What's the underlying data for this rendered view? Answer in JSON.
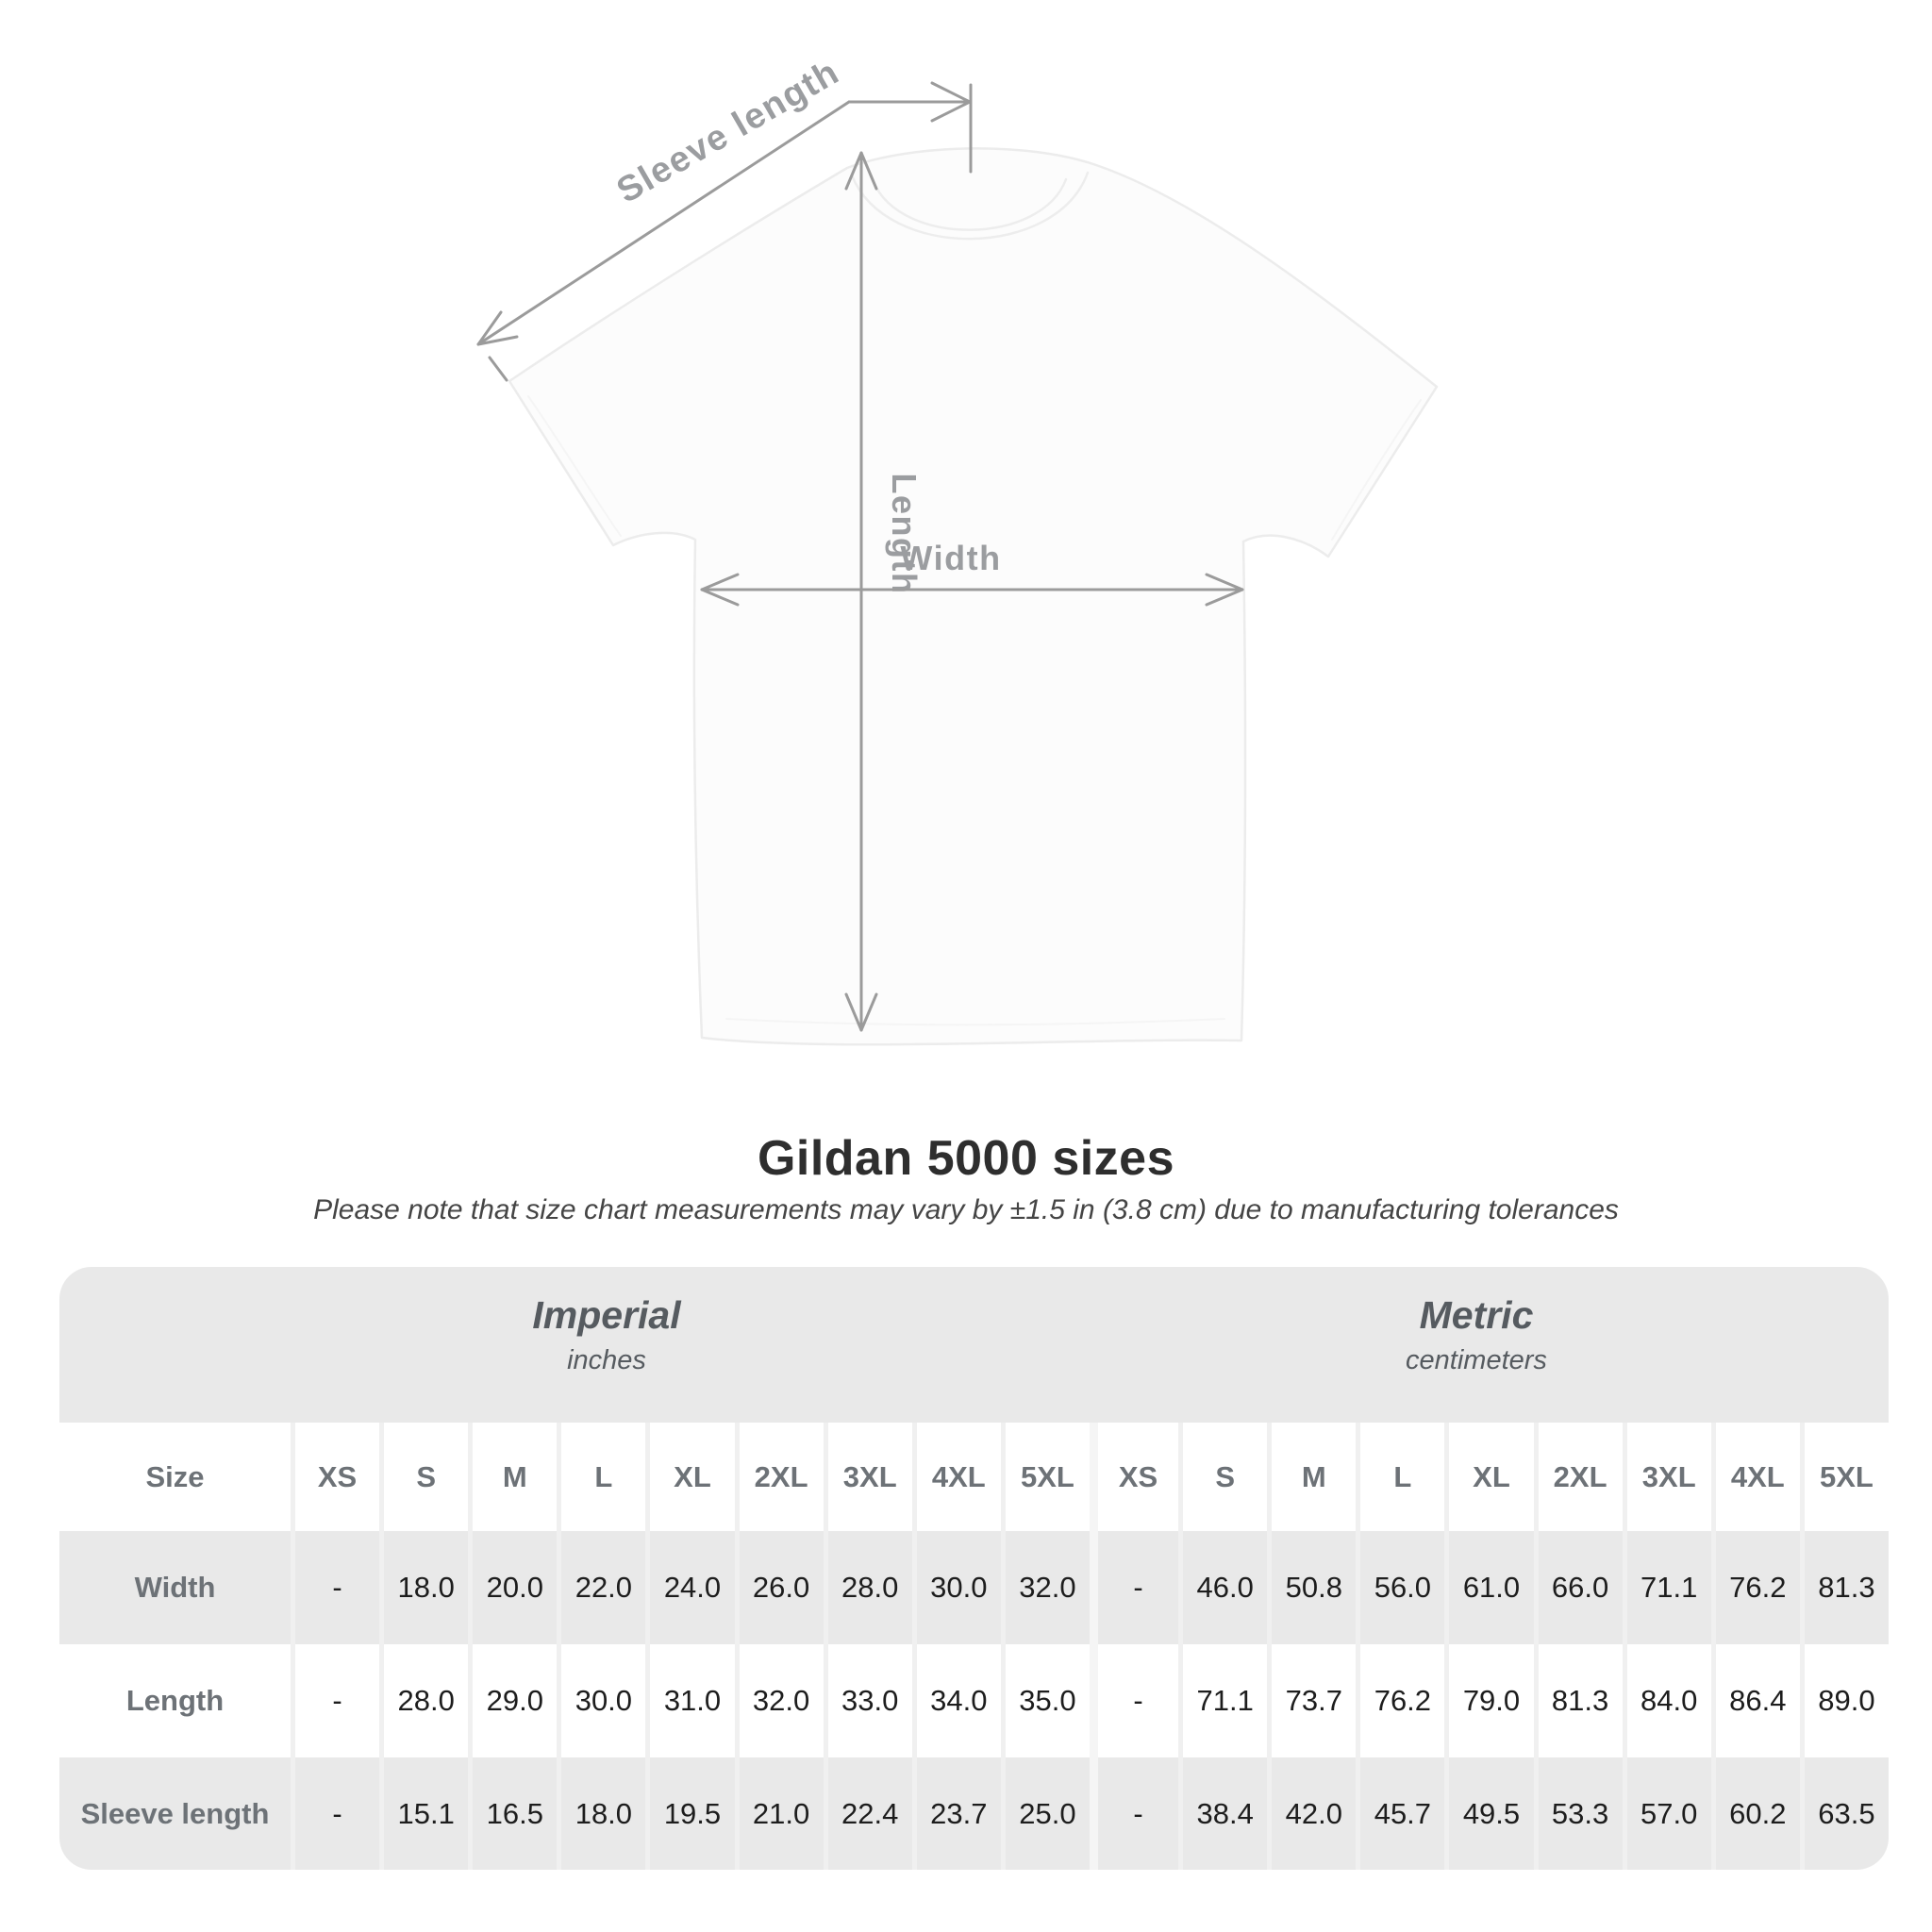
{
  "diagram": {
    "sleeve_length_label": "Sleeve length",
    "length_label": "Length",
    "width_label": "Width",
    "arrow_color": "#9b9b9b",
    "label_color": "#9b9da0"
  },
  "header": {
    "title": "Gildan 5000 sizes",
    "subtitle": "Please note that size chart measurements may vary by ±1.5 in (3.8 cm) due to manufacturing tolerances"
  },
  "chart_data": {
    "type": "table",
    "title": "Gildan 5000 sizes",
    "corner_header": "Size",
    "unit_groups": [
      {
        "label": "Imperial",
        "sublabel": "inches"
      },
      {
        "label": "Metric",
        "sublabel": "centimeters"
      }
    ],
    "size_columns": [
      "XS",
      "S",
      "M",
      "L",
      "XL",
      "2XL",
      "3XL",
      "4XL",
      "5XL"
    ],
    "rows": [
      {
        "label": "Width",
        "imperial": [
          "-",
          "18.0",
          "20.0",
          "22.0",
          "24.0",
          "26.0",
          "28.0",
          "30.0",
          "32.0"
        ],
        "metric": [
          "-",
          "46.0",
          "50.8",
          "56.0",
          "61.0",
          "66.0",
          "71.1",
          "76.2",
          "81.3"
        ]
      },
      {
        "label": "Length",
        "imperial": [
          "-",
          "28.0",
          "29.0",
          "30.0",
          "31.0",
          "32.0",
          "33.0",
          "34.0",
          "35.0"
        ],
        "metric": [
          "-",
          "71.1",
          "73.7",
          "76.2",
          "79.0",
          "81.3",
          "84.0",
          "86.4",
          "89.0"
        ]
      },
      {
        "label": "Sleeve length",
        "imperial": [
          "-",
          "15.1",
          "16.5",
          "18.0",
          "19.5",
          "21.0",
          "22.4",
          "23.7",
          "25.0"
        ],
        "metric": [
          "-",
          "38.4",
          "42.0",
          "45.7",
          "49.5",
          "53.3",
          "57.0",
          "60.2",
          "63.5"
        ]
      }
    ],
    "layout": {
      "stripe_color": "#e9e9e9",
      "separator_color": "#f0f0f0",
      "striped_rows": [
        "Width",
        "Sleeve length"
      ]
    }
  }
}
